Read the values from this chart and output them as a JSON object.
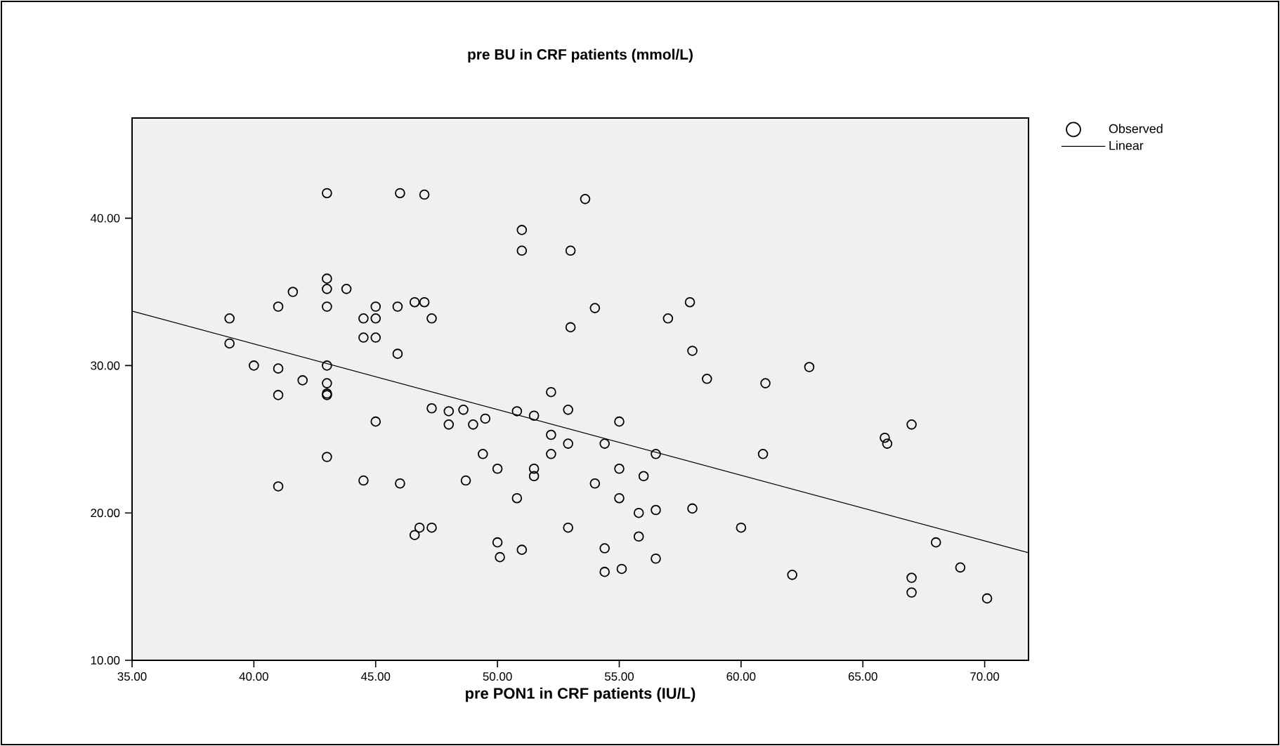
{
  "chart_data": {
    "type": "scatter",
    "title": "pre BU in CRF patients (mmol/L)",
    "xlabel": "pre PON1 in CRF patients (IU/L)",
    "xlim": [
      35,
      71.8
    ],
    "ylim": [
      10,
      46.8
    ],
    "xticks": [
      {
        "value": 35,
        "label": "35.00"
      },
      {
        "value": 40,
        "label": "40.00"
      },
      {
        "value": 45,
        "label": "45.00"
      },
      {
        "value": 50,
        "label": "50.00"
      },
      {
        "value": 55,
        "label": "55.00"
      },
      {
        "value": 60,
        "label": "60.00"
      },
      {
        "value": 65,
        "label": "65.00"
      },
      {
        "value": 70,
        "label": "70.00"
      }
    ],
    "yticks": [
      {
        "value": 10,
        "label": "10.00"
      },
      {
        "value": 20,
        "label": "20.00"
      },
      {
        "value": 30,
        "label": "30.00"
      },
      {
        "value": 40,
        "label": "40.00"
      }
    ],
    "legend": "right",
    "series": [
      {
        "name": "Observed",
        "marker": "circle",
        "color": "#000000",
        "x": [
          43.0,
          46.0,
          47.0,
          43.0,
          43.0,
          43.8,
          41.6,
          41.0,
          43.0,
          39.0,
          44.5,
          45.0,
          45.0,
          45.9,
          46.6,
          47.0,
          47.3,
          39.0,
          44.5,
          45.0,
          45.9,
          40.0,
          41.0,
          43.0,
          42.0,
          43.0,
          43.0,
          43.0,
          41.0,
          47.3,
          45.0,
          43.0,
          41.0,
          44.5,
          46.0,
          46.6,
          46.8,
          47.3,
          53.6,
          51.0,
          51.0,
          53.0,
          54.0,
          53.0,
          57.0,
          57.9,
          58.0,
          58.6,
          52.2,
          48.0,
          48.6,
          48.0,
          49.0,
          49.5,
          50.8,
          51.5,
          52.9,
          55.0,
          52.2,
          52.9,
          54.4,
          52.2,
          56.5,
          49.4,
          50.0,
          51.5,
          51.5,
          48.7,
          50.8,
          54.0,
          55.0,
          56.0,
          55.0,
          55.8,
          56.5,
          58.0,
          52.9,
          50.0,
          50.1,
          51.0,
          54.4,
          55.8,
          56.5,
          54.4,
          55.1,
          61.0,
          62.8,
          60.9,
          65.9,
          66.0,
          67.0,
          60.0,
          62.1,
          67.0,
          67.0,
          68.0,
          69.0,
          70.1
        ],
        "values": [
          41.7,
          41.7,
          41.6,
          35.9,
          35.2,
          35.2,
          35.0,
          34.0,
          34.0,
          33.2,
          33.2,
          33.2,
          34.0,
          34.0,
          34.3,
          34.3,
          33.2,
          31.5,
          31.9,
          31.9,
          30.8,
          30.0,
          29.8,
          30.0,
          29.0,
          28.8,
          28.1,
          28.0,
          28.0,
          27.1,
          26.2,
          23.8,
          21.8,
          22.2,
          22.0,
          18.5,
          19.0,
          19.0,
          41.3,
          39.2,
          37.8,
          37.8,
          33.9,
          32.6,
          33.2,
          34.3,
          31.0,
          29.1,
          28.2,
          26.9,
          27.0,
          26.0,
          26.0,
          26.4,
          26.9,
          26.6,
          27.0,
          26.2,
          25.3,
          24.7,
          24.7,
          24.0,
          24.0,
          24.0,
          23.0,
          23.0,
          22.5,
          22.2,
          21.0,
          22.0,
          23.0,
          22.5,
          21.0,
          20.0,
          20.2,
          20.3,
          19.0,
          18.0,
          17.0,
          17.5,
          17.6,
          18.4,
          16.9,
          16.0,
          16.2,
          28.8,
          29.9,
          24.0,
          25.1,
          24.7,
          26.0,
          19.0,
          15.8,
          15.6,
          14.6,
          18.0,
          16.3,
          14.2
        ]
      },
      {
        "name": "Linear",
        "type": "line",
        "marker": "none",
        "color": "#000000",
        "x": [
          35,
          71.8
        ],
        "values": [
          33.7,
          17.3
        ]
      }
    ]
  }
}
